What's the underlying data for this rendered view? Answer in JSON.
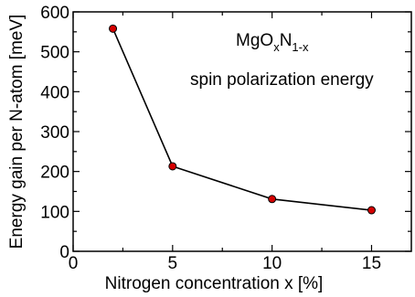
{
  "chart_data": {
    "type": "line",
    "xlabel": "Nitrogen concentration x [%]",
    "ylabel": "Energy gain per N-atom [meV]",
    "xlim": [
      0,
      17
    ],
    "ylim": [
      0,
      600
    ],
    "x_ticks": [
      0,
      5,
      10,
      15
    ],
    "y_ticks": [
      0,
      100,
      200,
      300,
      400,
      500,
      600
    ],
    "x_tick_labels": [
      "0",
      "5",
      "10",
      "15"
    ],
    "y_tick_labels": [
      "0",
      "100",
      "200",
      "300",
      "400",
      "500",
      "600"
    ],
    "grid": false,
    "series": [
      {
        "x": [
          2,
          5,
          10,
          15
        ],
        "y": [
          558,
          213,
          131,
          103
        ],
        "line_color": "#000000",
        "marker_color": "#d40000"
      }
    ],
    "annotations": {
      "formula_base": "MgO",
      "formula_sub1": "x",
      "formula_mid": "N",
      "formula_sub2": "1-x",
      "subtitle": "spin polarization energy"
    }
  }
}
